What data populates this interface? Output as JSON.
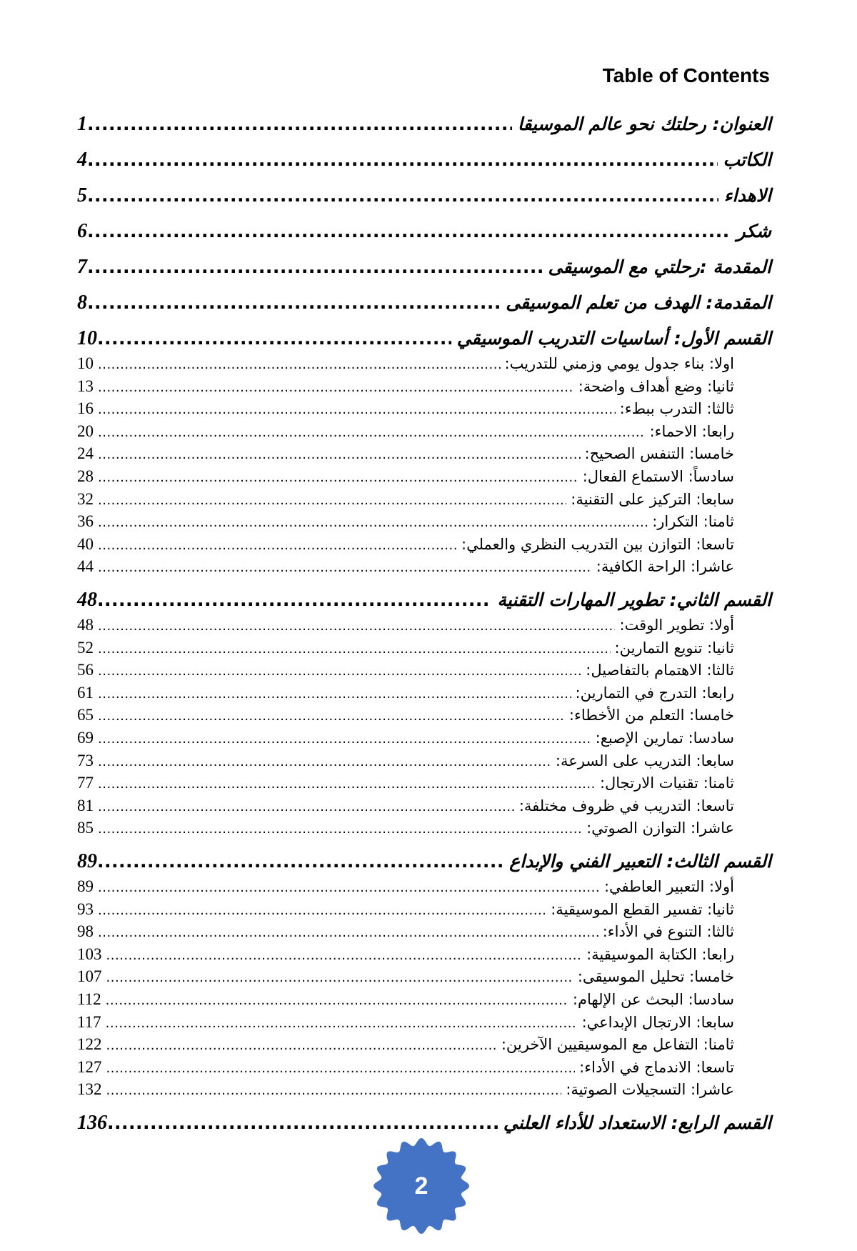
{
  "page_title": "Table of Contents",
  "page_number": "2",
  "badge_color": "#4472C4",
  "entries": [
    {
      "level": "major",
      "title": "العنوان: رحلتك نحو عالم الموسيقا",
      "page": "1"
    },
    {
      "level": "major",
      "title": "الكاتب",
      "page": "4"
    },
    {
      "level": "major",
      "title": "الاهداء",
      "page": "5"
    },
    {
      "level": "major",
      "title": "شكر",
      "page": "6"
    },
    {
      "level": "major",
      "title": "المقدمة :رحلتي مع الموسيقى",
      "page": "7"
    },
    {
      "level": "major",
      "title": "المقدمة: الهدف من تعلم الموسيقى",
      "page": "8"
    },
    {
      "level": "major",
      "title": "القسم الأول: أساسيات التدريب الموسيقي",
      "page": "10"
    },
    {
      "level": "sub",
      "title": "اولا: بناء جدول يومي وزمني للتدريب:",
      "page": "10"
    },
    {
      "level": "sub",
      "title": "ثانيا: وضع أهداف واضحة:",
      "page": "13"
    },
    {
      "level": "sub",
      "title": "ثالثا: التدرب ببطء:",
      "page": "16"
    },
    {
      "level": "sub",
      "title": "رابعا: الاحماء:",
      "page": "20"
    },
    {
      "level": "sub",
      "title": "خامسا: التنفس الصحيح:",
      "page": "24"
    },
    {
      "level": "sub",
      "title": "سادساً: الاستماع الفعال:",
      "page": "28"
    },
    {
      "level": "sub",
      "title": "سابعا: التركيز على التقنية:",
      "page": "32"
    },
    {
      "level": "sub",
      "title": "ثامنا: التكرار:",
      "page": "36"
    },
    {
      "level": "sub",
      "title": "تاسعا: التوازن بين التدريب النظري والعملي:",
      "page": "40"
    },
    {
      "level": "sub",
      "title": "عاشرا: الراحة الكافية:",
      "page": "44"
    },
    {
      "level": "major",
      "title": "القسم الثاني: تطوير المهارات التقنية",
      "page": "48"
    },
    {
      "level": "sub",
      "title": "أولا: تطوير الوقت:",
      "page": "48"
    },
    {
      "level": "sub",
      "title": "ثانيا: تنويع التمارين:",
      "page": "52"
    },
    {
      "level": "sub",
      "title": "ثالثا: الاهتمام بالتفاصيل:",
      "page": "56"
    },
    {
      "level": "sub",
      "title": "رابعا: التدرج في التمارين:",
      "page": "61"
    },
    {
      "level": "sub",
      "title": "خامسا: التعلم من الأخطاء:",
      "page": "65"
    },
    {
      "level": "sub",
      "title": "سادسا: تمارين الإصبع:",
      "page": "69"
    },
    {
      "level": "sub",
      "title": "سابعا: التدريب على السرعة:",
      "page": "73"
    },
    {
      "level": "sub",
      "title": "ثامنا: تقنيات الارتجال:",
      "page": "77"
    },
    {
      "level": "sub",
      "title": "تاسعا: التدريب في ظروف مختلفة:",
      "page": "81"
    },
    {
      "level": "sub",
      "title": "عاشرا: التوازن الصوتي:",
      "page": "85"
    },
    {
      "level": "major",
      "title": "القسم الثالث: التعبير الفني والإبداع",
      "page": "89"
    },
    {
      "level": "sub",
      "title": "أولا: التعبير العاطفي:",
      "page": "89"
    },
    {
      "level": "sub",
      "title": "ثانيا: تفسير القطع الموسيقية:",
      "page": "93"
    },
    {
      "level": "sub",
      "title": "ثالثا: التنوع في الأداء:",
      "page": "98"
    },
    {
      "level": "sub",
      "title": "رابعا: الكتابة الموسيقية:",
      "page": "103"
    },
    {
      "level": "sub",
      "title": "خامسا: تحليل الموسيقى:",
      "page": "107"
    },
    {
      "level": "sub",
      "title": "سادسا: البحث عن الإلهام:",
      "page": "112"
    },
    {
      "level": "sub",
      "title": "سابعا: الارتجال الإبداعي:",
      "page": "117"
    },
    {
      "level": "sub",
      "title": "ثامنا: التفاعل مع الموسيقيين الآخرين:",
      "page": "122"
    },
    {
      "level": "sub",
      "title": "تاسعا: الاندماج في الأداء:",
      "page": "127"
    },
    {
      "level": "sub",
      "title": "عاشرا: التسجيلات الصوتية:",
      "page": "132"
    },
    {
      "level": "major",
      "title": "القسم الرابع: الاستعداد للأداء العلني",
      "page": "136"
    }
  ]
}
